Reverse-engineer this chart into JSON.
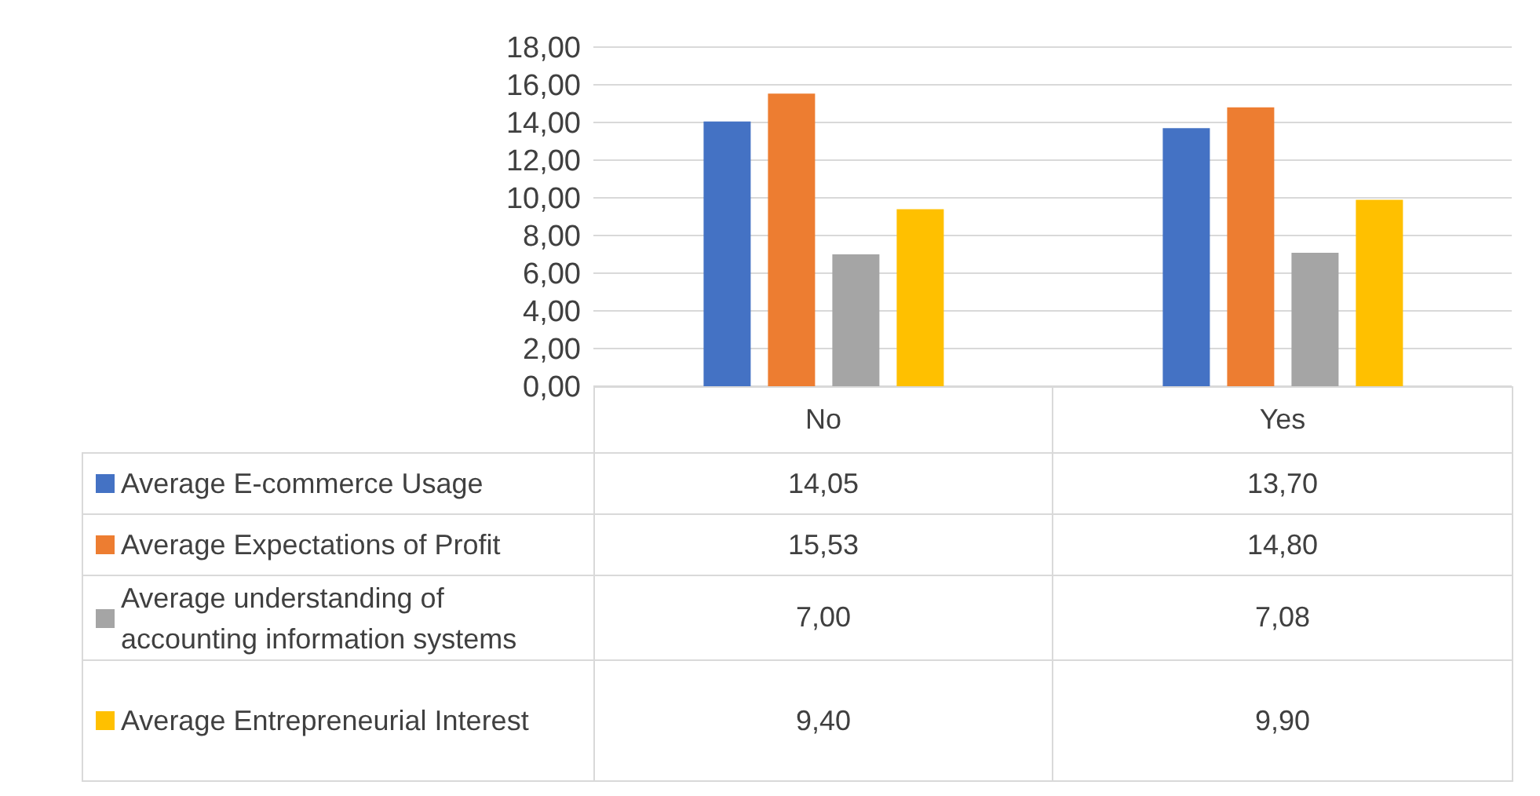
{
  "chart_data": {
    "type": "bar",
    "categories": [
      "No",
      "Yes"
    ],
    "series": [
      {
        "name": "Average E-commerce Usage",
        "color": "#4472c4",
        "values": [
          14.05,
          13.7
        ],
        "value_labels": [
          "14,05",
          "13,70"
        ]
      },
      {
        "name": "Average Expectations of Profit",
        "color": "#ed7d31",
        "values": [
          15.53,
          14.8
        ],
        "value_labels": [
          "15,53",
          "14,80"
        ]
      },
      {
        "name": "Average understanding of accounting information systems",
        "color": "#a5a5a5",
        "values": [
          7.0,
          7.08
        ],
        "value_labels": [
          "7,00",
          "7,08"
        ]
      },
      {
        "name": "Average Entrepreneurial Interest",
        "color": "#ffc000",
        "values": [
          9.4,
          9.9
        ],
        "value_labels": [
          "9,40",
          "9,90"
        ]
      }
    ],
    "ylim": [
      0,
      18
    ],
    "yticks": [
      {
        "value": 0,
        "label": "0,00"
      },
      {
        "value": 2,
        "label": "2,00"
      },
      {
        "value": 4,
        "label": "4,00"
      },
      {
        "value": 6,
        "label": "6,00"
      },
      {
        "value": 8,
        "label": "8,00"
      },
      {
        "value": 10,
        "label": "10,00"
      },
      {
        "value": 12,
        "label": "12,00"
      },
      {
        "value": 14,
        "label": "14,00"
      },
      {
        "value": 16,
        "label": "16,00"
      },
      {
        "value": 18,
        "label": "18,00"
      }
    ],
    "grid": "y",
    "legend": "bottom"
  }
}
